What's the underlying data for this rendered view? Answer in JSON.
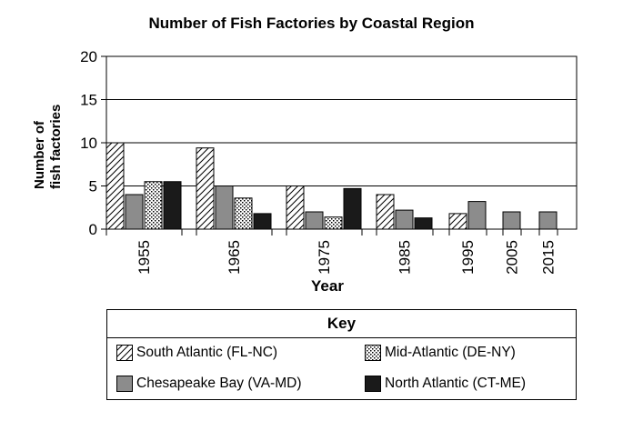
{
  "chart_data": {
    "type": "bar",
    "title": "Number of Fish Factories by Coastal Region",
    "xlabel": "Year",
    "ylabel": "Number of fish factories",
    "ylabel_lines": [
      "Number of",
      "fish factories"
    ],
    "ylim": [
      0,
      20
    ],
    "yticks": [
      0,
      5,
      10,
      15,
      20
    ],
    "grid": true,
    "categories": [
      "1955",
      "1965",
      "1975",
      "1985",
      "1995",
      "2005",
      "2015"
    ],
    "series": [
      {
        "name": "South Atlantic (FL-NC)",
        "pattern": "diagonal-hatch",
        "values": [
          10,
          9.4,
          5,
          4,
          1.8,
          null,
          null
        ]
      },
      {
        "name": "Chesapeake Bay (VA-MD)",
        "pattern": "solid-gray",
        "values": [
          4,
          5,
          2,
          2.2,
          3.2,
          2,
          2
        ]
      },
      {
        "name": "Mid-Atlantic (DE-NY)",
        "pattern": "dotted",
        "values": [
          5.5,
          3.6,
          1.4,
          null,
          null,
          null,
          null
        ]
      },
      {
        "name": "North Atlantic (CT-ME)",
        "pattern": "solid-black",
        "values": [
          5.5,
          1.8,
          4.7,
          1.3,
          null,
          null,
          null
        ]
      }
    ],
    "legend": {
      "title": "Key",
      "placement": "bottom",
      "entries": [
        "South Atlantic (FL-NC)",
        "Mid-Atlantic (DE-NY)",
        "Chesapeake Bay (VA-MD)",
        "North Atlantic (CT-ME)"
      ]
    },
    "colors": {
      "gray": "#8c8c8c",
      "black": "#1a1a1a"
    }
  }
}
